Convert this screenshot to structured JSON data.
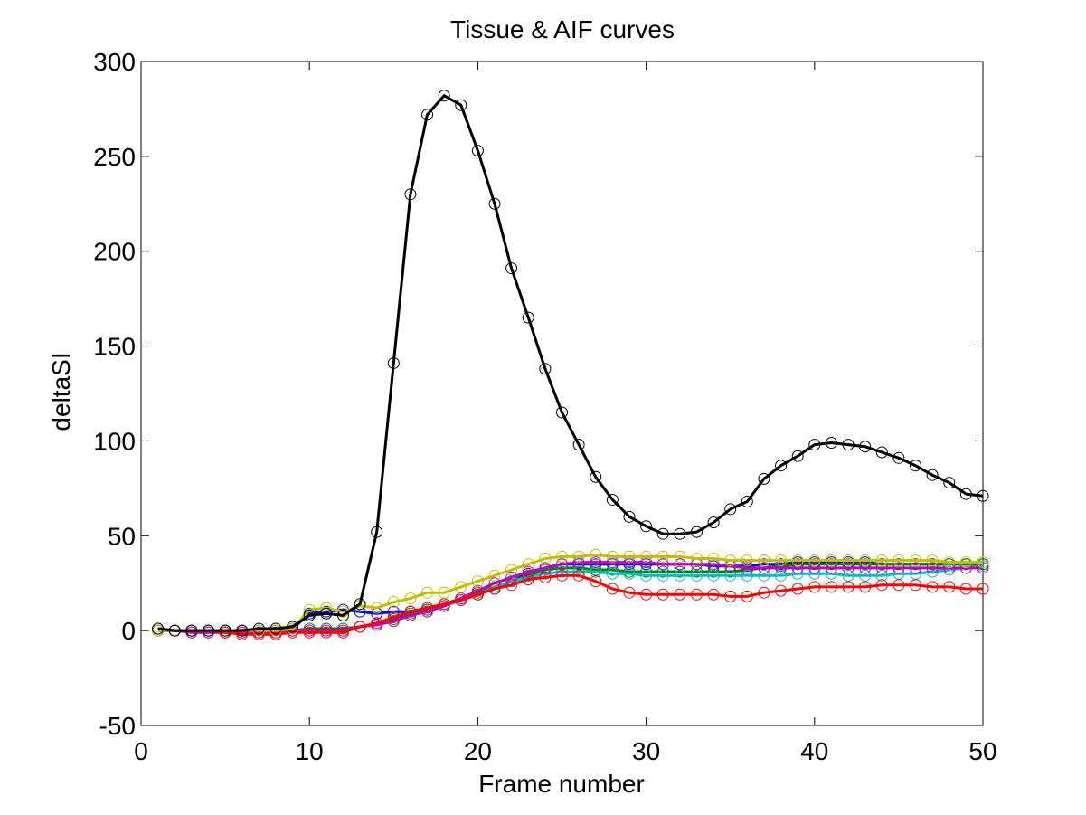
{
  "chart_data": {
    "type": "line",
    "title": "Tissue & AIF curves",
    "xlabel": "Frame number",
    "ylabel": "deltaSI",
    "xlim": [
      0,
      50
    ],
    "ylim": [
      -50,
      300
    ],
    "xticks": [
      0,
      10,
      20,
      30,
      40,
      50
    ],
    "yticks": [
      -50,
      0,
      50,
      100,
      150,
      200,
      250,
      300
    ],
    "grid": false,
    "legend": "none",
    "marker": "circle",
    "x": [
      1,
      2,
      3,
      4,
      5,
      6,
      7,
      8,
      9,
      10,
      11,
      12,
      13,
      14,
      15,
      16,
      17,
      18,
      19,
      20,
      21,
      22,
      23,
      24,
      25,
      26,
      27,
      28,
      29,
      30,
      31,
      32,
      33,
      34,
      35,
      36,
      37,
      38,
      39,
      40,
      41,
      42,
      43,
      44,
      45,
      46,
      47,
      48,
      49,
      50
    ],
    "series": [
      {
        "color": "#000000",
        "values": [
          1,
          0,
          0,
          0,
          0,
          0,
          1,
          1,
          2,
          8,
          9,
          8,
          14,
          52,
          141,
          230,
          272,
          282,
          277,
          253,
          225,
          191,
          165,
          138,
          115,
          98,
          81,
          69,
          60,
          55,
          51,
          51,
          52,
          57,
          64,
          68,
          80,
          87,
          92,
          98,
          99,
          98,
          97,
          94,
          91,
          87,
          82,
          78,
          72,
          71
        ]
      },
      {
        "color": "#0000ff",
        "values": [
          0,
          0,
          0,
          0,
          0,
          0,
          0,
          0,
          1,
          9,
          10,
          11,
          10,
          9,
          10,
          10,
          11,
          13,
          16,
          19,
          22,
          26,
          30,
          33,
          35,
          35,
          35,
          35,
          35,
          35,
          35,
          35,
          35,
          34,
          34,
          34,
          35,
          35,
          36,
          36,
          36,
          36,
          36,
          35,
          35,
          35,
          35,
          35,
          35,
          35
        ]
      },
      {
        "color": "#008000",
        "values": [
          0,
          0,
          0,
          0,
          0,
          0,
          -1,
          0,
          0,
          1,
          1,
          1,
          2,
          3,
          6,
          9,
          11,
          14,
          17,
          20,
          23,
          26,
          29,
          32,
          33,
          33,
          32,
          32,
          31,
          31,
          31,
          31,
          31,
          31,
          31,
          32,
          33,
          34,
          35,
          35,
          35,
          35,
          35,
          35,
          35,
          35,
          35,
          35,
          35,
          35
        ]
      },
      {
        "color": "#00bfbf",
        "values": [
          0,
          0,
          -1,
          -1,
          -1,
          -1,
          -1,
          -1,
          0,
          0,
          0,
          0,
          2,
          3,
          5,
          8,
          10,
          13,
          16,
          19,
          23,
          26,
          28,
          30,
          31,
          31,
          31,
          30,
          30,
          29,
          29,
          29,
          29,
          29,
          29,
          29,
          29,
          29,
          30,
          30,
          30,
          29,
          29,
          29,
          30,
          30,
          31,
          32,
          33,
          34
        ]
      },
      {
        "color": "#bf00bf",
        "values": [
          0,
          0,
          -1,
          -1,
          -1,
          -1,
          -1,
          -1,
          0,
          0,
          0,
          0,
          2,
          3,
          5,
          8,
          10,
          13,
          17,
          21,
          25,
          28,
          31,
          33,
          35,
          36,
          36,
          36,
          36,
          36,
          35,
          35,
          35,
          35,
          34,
          33,
          33,
          33,
          33,
          33,
          33,
          33,
          33,
          33,
          33,
          33,
          33,
          33,
          33,
          33
        ]
      },
      {
        "color": "#ff0000",
        "values": [
          1,
          0,
          0,
          0,
          -1,
          -2,
          -2,
          -2,
          -1,
          -1,
          -1,
          -1,
          2,
          4,
          7,
          10,
          12,
          14,
          16,
          19,
          22,
          24,
          27,
          28,
          29,
          29,
          26,
          22,
          20,
          19,
          19,
          19,
          19,
          19,
          18,
          18,
          20,
          21,
          22,
          23,
          23,
          23,
          23,
          24,
          24,
          24,
          23,
          23,
          22,
          22
        ]
      },
      {
        "color": "#bfbf00",
        "values": [
          0,
          0,
          0,
          0,
          0,
          0,
          0,
          0,
          1,
          11,
          12,
          10,
          13,
          12,
          15,
          17,
          20,
          20,
          23,
          26,
          29,
          32,
          35,
          38,
          39,
          39,
          40,
          39,
          39,
          39,
          39,
          39,
          38,
          38,
          37,
          37,
          37,
          37,
          37,
          37,
          37,
          37,
          37,
          37,
          37,
          37,
          37,
          36,
          36,
          36
        ]
      }
    ]
  }
}
